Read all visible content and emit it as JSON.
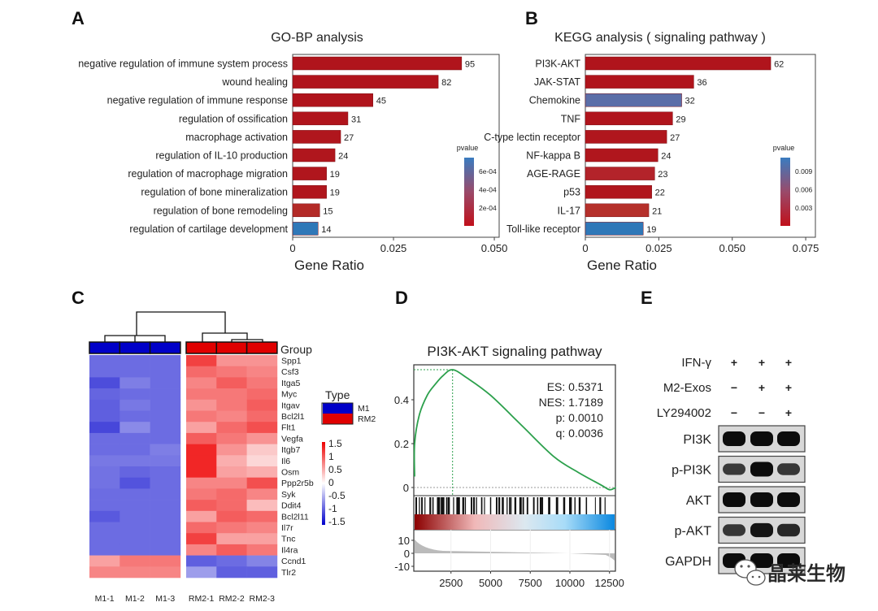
{
  "figure": {
    "panel_labels": [
      "A",
      "B",
      "C",
      "D",
      "E"
    ],
    "watermark": "晶莱生物"
  },
  "chart_data": [
    {
      "panel": "A",
      "type": "bar",
      "orientation": "horizontal",
      "title": "GO-BP analysis",
      "xlabel": "Gene Ratio",
      "categories": [
        "negative regulation of immune system process",
        "wound healing",
        "negative regulation of immune response",
        "regulation of ossification",
        "macrophage activation",
        "regulation of IL-10 production",
        "regulation of macrophage migration",
        "regulation of bone mineralization",
        "regulation of bone remodeling",
        "regulation of cartilage development"
      ],
      "values": [
        0.0419,
        0.0361,
        0.0199,
        0.0137,
        0.0119,
        0.0105,
        0.0084,
        0.0084,
        0.0067,
        0.0063
      ],
      "data_labels": [
        "95",
        "82",
        "45",
        "31",
        "27",
        "24",
        "19",
        "19",
        "15",
        "14"
      ],
      "colors": [
        "#b0141c",
        "#b0141c",
        "#b0141c",
        "#b0141c",
        "#b0161d",
        "#b0161d",
        "#b0161d",
        "#b0161d",
        "#b32a27",
        "#2f78b8"
      ],
      "xticks": [
        "0",
        "0.025",
        "0.050"
      ],
      "xlim": [
        0,
        0.0512
      ],
      "legend": {
        "title": "pvalue",
        "ticks": [
          "6e-04",
          "4e-04",
          "2e-04"
        ],
        "low_color": "#c0101a",
        "high_color": "#3a7cc0"
      }
    },
    {
      "panel": "B",
      "type": "bar",
      "orientation": "horizontal",
      "title": "KEGG analysis ( signaling pathway )",
      "xlabel": "Gene Ratio",
      "categories": [
        "PI3K-AKT",
        "JAK-STAT",
        "Chemokine",
        "TNF",
        "C-type lectin receptor",
        "NF-kappa B",
        "AGE-RAGE",
        "p53",
        "IL-17",
        "Toll-like receptor"
      ],
      "values": [
        0.0631,
        0.0369,
        0.0328,
        0.0297,
        0.0277,
        0.0247,
        0.0236,
        0.0226,
        0.0216,
        0.0197
      ],
      "data_labels": [
        "62",
        "36",
        "32",
        "29",
        "27",
        "24",
        "23",
        "22",
        "21",
        "19"
      ],
      "colors": [
        "#b0141c",
        "#b0141c",
        "#5b6ea8",
        "#b0141c",
        "#b0161d",
        "#b0161d",
        "#b3232a",
        "#b0161d",
        "#b5302b",
        "#2f78b8"
      ],
      "xticks": [
        "0",
        "0.025",
        "0.050",
        "0.075"
      ],
      "xlim": [
        0,
        0.0783
      ],
      "legend": {
        "title": "pvalue",
        "ticks": [
          "0.009",
          "0.006",
          "0.003"
        ],
        "low_color": "#c0101a",
        "high_color": "#3a7cc0"
      }
    },
    {
      "panel": "C",
      "type": "heatmap",
      "group_label": "Group",
      "columns": [
        "M1-1",
        "M1-2",
        "M1-3",
        "RM2-1",
        "RM2-2",
        "RM2-3"
      ],
      "column_groups": [
        "M1",
        "M1",
        "M1",
        "RM2",
        "RM2",
        "RM2"
      ],
      "rows": [
        "Spp1",
        "Csf3",
        "Itga5",
        "Myc",
        "Itgav",
        "Bcl2l1",
        "Flt1",
        "Vegfa",
        "Itgb7",
        "Il6",
        "Osm",
        "Ppp2r5b",
        "Syk",
        "Ddit4",
        "Bcl2l11",
        "Il7r",
        "Tnc",
        "Il4ra",
        "Ccnd1",
        "Tlr2"
      ],
      "values": [
        [
          -1.1,
          -1.1,
          -1.1,
          1.3,
          0.7,
          0.7
        ],
        [
          -1.1,
          -1.1,
          -1.1,
          1.0,
          0.9,
          0.8
        ],
        [
          -1.35,
          -0.95,
          -1.1,
          0.8,
          1.1,
          0.9
        ],
        [
          -1.15,
          -1.1,
          -1.1,
          0.9,
          0.9,
          1.0
        ],
        [
          -1.2,
          -1.0,
          -1.1,
          0.7,
          0.9,
          1.1
        ],
        [
          -1.2,
          -1.1,
          -1.1,
          0.9,
          0.8,
          1.0
        ],
        [
          -1.4,
          -0.85,
          -1.1,
          0.6,
          1.0,
          1.2
        ],
        [
          -1.1,
          -1.1,
          -1.1,
          1.1,
          0.9,
          0.7
        ],
        [
          -1.1,
          -1.1,
          -0.95,
          1.5,
          0.7,
          0.3
        ],
        [
          -1.0,
          -1.0,
          -1.0,
          1.6,
          0.5,
          0.2
        ],
        [
          -1.05,
          -1.15,
          -1.1,
          1.5,
          0.6,
          0.5
        ],
        [
          -1.05,
          -1.3,
          -1.1,
          0.8,
          0.8,
          1.2
        ],
        [
          -1.1,
          -1.1,
          -1.1,
          0.9,
          1.0,
          0.8
        ],
        [
          -1.1,
          -1.1,
          -1.1,
          1.1,
          1.0,
          0.4
        ],
        [
          -1.25,
          -1.1,
          -1.1,
          0.6,
          1.1,
          1.0
        ],
        [
          -1.1,
          -1.1,
          -1.1,
          1.0,
          0.9,
          0.8
        ],
        [
          -1.1,
          -1.1,
          -1.1,
          1.3,
          0.6,
          0.6
        ],
        [
          -1.1,
          -1.1,
          -1.1,
          0.8,
          1.1,
          0.9
        ],
        [
          0.6,
          0.9,
          0.9,
          -1.2,
          -1.1,
          -0.9
        ],
        [
          0.8,
          0.8,
          0.8,
          -0.7,
          -1.2,
          -1.2
        ]
      ],
      "legend": {
        "title": "Type",
        "entries": [
          {
            "label": "M1",
            "color": "#0000c8"
          },
          {
            "label": "RM2",
            "color": "#e00000"
          }
        ]
      },
      "colorbar": {
        "ticks": [
          "1.5",
          "1",
          "0.5",
          "0",
          "-0.5",
          "-1",
          "-1.5"
        ],
        "range": [
          -1.5,
          1.5
        ],
        "low_color": "#0000cc",
        "mid_color": "#ffffff",
        "high_color": "#ee0000"
      }
    },
    {
      "panel": "D",
      "type": "line",
      "title": "PI3K-AKT signaling pathway",
      "x": [
        0,
        200,
        500,
        1000,
        1500,
        2000,
        2600,
        3500,
        5000,
        7000,
        9000,
        10500,
        12000,
        12500,
        12900
      ],
      "y": [
        0.05,
        0.2,
        0.33,
        0.42,
        0.47,
        0.51,
        0.537,
        0.5,
        0.42,
        0.28,
        0.14,
        0.07,
        0.01,
        -0.01,
        0.0
      ],
      "line_color": "#2ca04c",
      "peak_x": 2600,
      "annotations": [
        "ES: 0.5371",
        "NES: 1.7189",
        "p: 0.0010",
        "q: 0.0036"
      ],
      "yticks": [
        "0.4",
        "0.2",
        "0"
      ],
      "xticks": [
        "2500",
        "5000",
        "7500",
        "10000",
        "12500"
      ],
      "xlim": [
        0,
        12900
      ],
      "ylim": [
        -0.03,
        0.55
      ],
      "ranked_list_yticks": [
        "10",
        "0",
        "-10"
      ]
    },
    {
      "panel": "E",
      "type": "table",
      "treatments": [
        {
          "label": "IFN-γ",
          "values": [
            "+",
            "+",
            "+"
          ]
        },
        {
          "label": "M2-Exos",
          "values": [
            "−",
            "+",
            "+"
          ]
        },
        {
          "label": "LY294002",
          "values": [
            "−",
            "−",
            "+"
          ]
        }
      ],
      "blots": [
        {
          "label": "PI3K",
          "intensity": [
            1.0,
            1.0,
            1.0
          ]
        },
        {
          "label": "p-PI3K",
          "intensity": [
            0.5,
            1.0,
            0.55
          ]
        },
        {
          "label": "AKT",
          "intensity": [
            1.0,
            1.0,
            1.0
          ]
        },
        {
          "label": "p-AKT",
          "intensity": [
            0.55,
            0.9,
            0.7
          ]
        },
        {
          "label": "GAPDH",
          "intensity": [
            1.0,
            1.0,
            1.0
          ]
        }
      ]
    }
  ]
}
